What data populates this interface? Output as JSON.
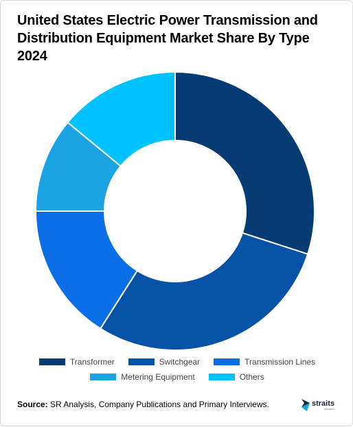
{
  "chart_data": {
    "type": "donut",
    "title": "United States Electric Power Transmission and Distribution Equipment Market Share By Type 2024",
    "categories": [
      "Transformer",
      "Switchgear",
      "Transmission Lines",
      "Metering Equipment",
      "Others"
    ],
    "values": [
      30,
      29,
      16,
      11,
      14
    ],
    "unit": "%",
    "colors": [
      "#063b73",
      "#0652a6",
      "#0a6fe6",
      "#1aa2e2",
      "#00c2ff"
    ],
    "legend": [
      "Transformer",
      "Switchgear",
      "Transmission Lines",
      "Metering Equipment",
      "Others"
    ],
    "legend_position": "bottom"
  },
  "source": {
    "label": "Source:",
    "text": " SR Analysis, Company Publications and Primary Interviews."
  },
  "logo": {
    "name": "straits",
    "sub": "research"
  }
}
